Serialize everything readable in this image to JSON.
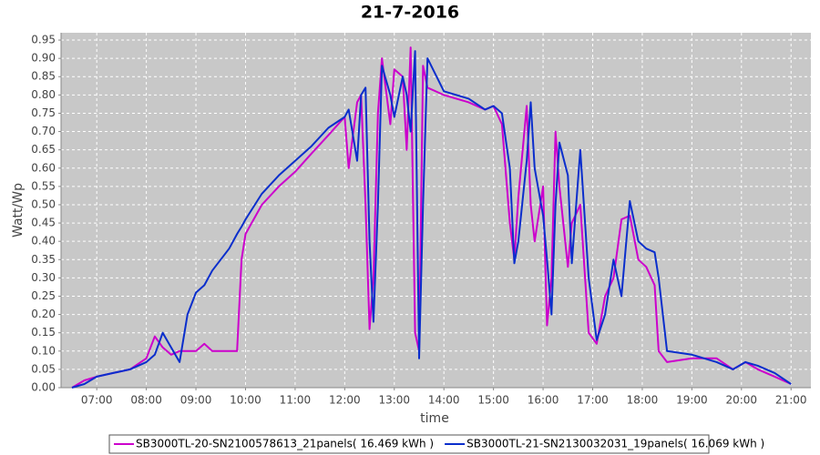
{
  "chart_data": {
    "type": "line",
    "title": "21-7-2016",
    "x_label": "time",
    "y_label": "Watt/Wp",
    "x": [
      6.5,
      6.75,
      7,
      7.33,
      7.67,
      8,
      8.17,
      8.33,
      8.5,
      8.67,
      8.83,
      9,
      9.17,
      9.33,
      9.67,
      9.83,
      9.92,
      10,
      10.33,
      10.67,
      11,
      11.33,
      11.67,
      12,
      12.08,
      12.25,
      12.33,
      12.42,
      12.5,
      12.58,
      12.67,
      12.75,
      12.92,
      13,
      13.17,
      13.25,
      13.33,
      13.42,
      13.5,
      13.58,
      13.67,
      14,
      14.5,
      14.83,
      15,
      15.17,
      15.33,
      15.42,
      15.5,
      15.67,
      15.75,
      15.83,
      16,
      16.08,
      16.17,
      16.25,
      16.33,
      16.5,
      16.58,
      16.75,
      16.92,
      17.08,
      17.25,
      17.42,
      17.58,
      17.75,
      17.92,
      18.08,
      18.25,
      18.33,
      18.5,
      19,
      19.5,
      19.83,
      20.08,
      20.33,
      20.67,
      21
    ],
    "series": [
      {
        "name": "SB3000TL-20-SN2100578613_21panels( 16.469 kWh )",
        "color": "#cc00cc",
        "values": [
          0,
          0.02,
          0.03,
          0.04,
          0.05,
          0.08,
          0.14,
          0.11,
          0.09,
          0.1,
          0.1,
          0.1,
          0.12,
          0.1,
          0.1,
          0.1,
          0.35,
          0.42,
          0.5,
          0.55,
          0.59,
          0.64,
          0.69,
          0.74,
          0.6,
          0.78,
          0.8,
          0.5,
          0.16,
          0.3,
          0.75,
          0.9,
          0.72,
          0.87,
          0.85,
          0.65,
          0.93,
          0.15,
          0.1,
          0.88,
          0.82,
          0.8,
          0.78,
          0.76,
          0.77,
          0.72,
          0.45,
          0.35,
          0.52,
          0.77,
          0.5,
          0.4,
          0.55,
          0.17,
          0.3,
          0.7,
          0.55,
          0.33,
          0.45,
          0.5,
          0.15,
          0.12,
          0.25,
          0.3,
          0.46,
          0.47,
          0.35,
          0.33,
          0.28,
          0.1,
          0.07,
          0.08,
          0.08,
          0.05,
          0.07,
          0.05,
          0.03,
          0.01
        ]
      },
      {
        "name": "SB3000TL-21-SN2130032031_19panels( 16.069 kWh )",
        "color": "#0a2ecc",
        "values": [
          0,
          0.01,
          0.03,
          0.04,
          0.05,
          0.07,
          0.09,
          0.15,
          0.11,
          0.07,
          0.2,
          0.26,
          0.28,
          0.32,
          0.38,
          0.42,
          0.44,
          0.46,
          0.53,
          0.58,
          0.62,
          0.66,
          0.71,
          0.74,
          0.76,
          0.62,
          0.8,
          0.82,
          0.4,
          0.18,
          0.5,
          0.88,
          0.8,
          0.74,
          0.85,
          0.8,
          0.7,
          0.92,
          0.08,
          0.5,
          0.9,
          0.81,
          0.79,
          0.76,
          0.77,
          0.75,
          0.6,
          0.34,
          0.4,
          0.62,
          0.78,
          0.6,
          0.47,
          0.35,
          0.2,
          0.5,
          0.67,
          0.58,
          0.34,
          0.65,
          0.3,
          0.13,
          0.2,
          0.35,
          0.25,
          0.51,
          0.4,
          0.38,
          0.37,
          0.3,
          0.1,
          0.09,
          0.07,
          0.05,
          0.07,
          0.06,
          0.04,
          0.01
        ]
      }
    ],
    "xlim": [
      6.28,
      21.4
    ],
    "xticks": [
      {
        "value": 7,
        "label": "07:00"
      },
      {
        "value": 8,
        "label": "08:00"
      },
      {
        "value": 9,
        "label": "09:00"
      },
      {
        "value": 10,
        "label": "10:00"
      },
      {
        "value": 11,
        "label": "11:00"
      },
      {
        "value": 12,
        "label": "12:00"
      },
      {
        "value": 13,
        "label": "13:00"
      },
      {
        "value": 14,
        "label": "14:00"
      },
      {
        "value": 15,
        "label": "15:00"
      },
      {
        "value": 16,
        "label": "16:00"
      },
      {
        "value": 17,
        "label": "17:00"
      },
      {
        "value": 18,
        "label": "18:00"
      },
      {
        "value": 19,
        "label": "19:00"
      },
      {
        "value": 20,
        "label": "20:00"
      },
      {
        "value": 21,
        "label": "21:00"
      }
    ],
    "ylim": [
      0,
      0.97
    ],
    "yticks": [
      {
        "value": 0,
        "label": "0.00"
      },
      {
        "value": 0.05,
        "label": "0.05"
      },
      {
        "value": 0.1,
        "label": "0.10"
      },
      {
        "value": 0.15,
        "label": "0.15"
      },
      {
        "value": 0.2,
        "label": "0.20"
      },
      {
        "value": 0.25,
        "label": "0.25"
      },
      {
        "value": 0.3,
        "label": "0.30"
      },
      {
        "value": 0.35,
        "label": "0.35"
      },
      {
        "value": 0.4,
        "label": "0.40"
      },
      {
        "value": 0.45,
        "label": "0.45"
      },
      {
        "value": 0.5,
        "label": "0.50"
      },
      {
        "value": 0.55,
        "label": "0.55"
      },
      {
        "value": 0.6,
        "label": "0.60"
      },
      {
        "value": 0.65,
        "label": "0.65"
      },
      {
        "value": 0.7,
        "label": "0.70"
      },
      {
        "value": 0.75,
        "label": "0.75"
      },
      {
        "value": 0.8,
        "label": "0.80"
      },
      {
        "value": 0.85,
        "label": "0.85"
      },
      {
        "value": 0.9,
        "label": "0.90"
      },
      {
        "value": 0.95,
        "label": "0.95"
      }
    ],
    "grid": true,
    "legend": "bottom"
  }
}
